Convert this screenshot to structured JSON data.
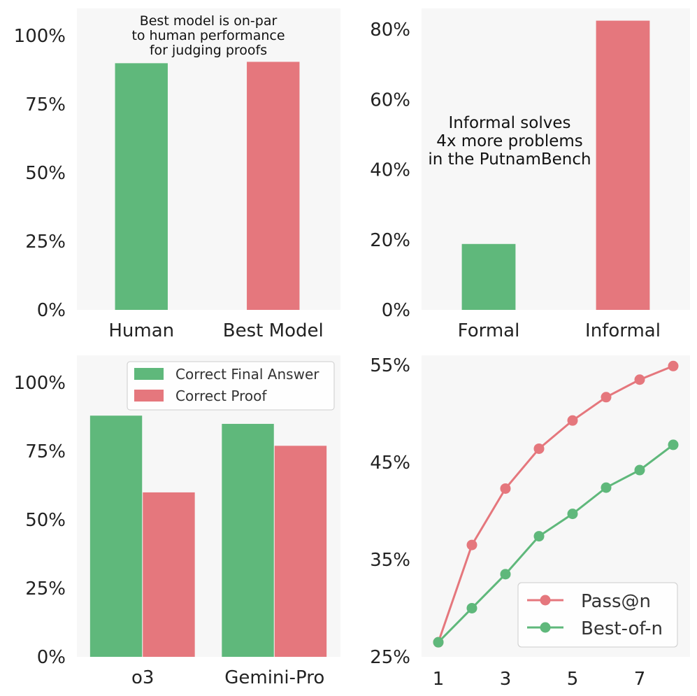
{
  "colors": {
    "green": "#5fb87b",
    "red": "#e5777d",
    "panel_bg": "#f7f7f7"
  },
  "chart_data": [
    {
      "type": "bar",
      "categories": [
        "Human",
        "Best Model"
      ],
      "series": [
        {
          "values": [
            90,
            90.5
          ]
        }
      ],
      "bar_colors": [
        "#5fb87b",
        "#e5777d"
      ],
      "ylim": [
        0,
        110
      ],
      "yticks": [
        0,
        25,
        50,
        75,
        100
      ],
      "ytick_labels": [
        "0%",
        "25%",
        "50%",
        "75%",
        "100%"
      ],
      "annotation": [
        "Best model is on-par",
        "to human performance",
        "for judging proofs"
      ],
      "grid": false
    },
    {
      "type": "bar",
      "categories": [
        "Formal",
        "Informal"
      ],
      "series": [
        {
          "values": [
            18.8,
            82.5
          ]
        }
      ],
      "bar_colors": [
        "#5fb87b",
        "#e5777d"
      ],
      "ylim": [
        0,
        86
      ],
      "yticks": [
        0,
        20,
        40,
        60,
        80
      ],
      "ytick_labels": [
        "0%",
        "20%",
        "40%",
        "60%",
        "80%"
      ],
      "annotation": [
        "Informal solves",
        "4x more problems",
        "in the PutnamBench"
      ],
      "grid": false
    },
    {
      "type": "bar",
      "categories": [
        "o3",
        "Gemini-Pro"
      ],
      "series": [
        {
          "name": "Correct Final Answer",
          "color": "#5fb87b",
          "values": [
            88,
            85
          ]
        },
        {
          "name": "Correct Proof",
          "color": "#e5777d",
          "values": [
            60,
            77
          ]
        }
      ],
      "ylim": [
        0,
        110
      ],
      "yticks": [
        0,
        25,
        50,
        75,
        100
      ],
      "ytick_labels": [
        "0%",
        "25%",
        "50%",
        "75%",
        "100%"
      ],
      "legend": "top-right",
      "grid": false
    },
    {
      "type": "line",
      "x": [
        1,
        2,
        3,
        4,
        5,
        6,
        7,
        8
      ],
      "series": [
        {
          "name": "Pass@n",
          "color": "#e5777d",
          "values": [
            26.5,
            36.5,
            42.3,
            46.4,
            49.3,
            51.7,
            53.5,
            54.9
          ]
        },
        {
          "name": "Best-of-n",
          "color": "#5fb87b",
          "values": [
            26.5,
            30.0,
            33.5,
            37.4,
            39.7,
            42.4,
            44.2,
            46.8
          ]
        }
      ],
      "xlim": [
        0.5,
        8.5
      ],
      "ylim": [
        25,
        56
      ],
      "xticks": [
        1,
        3,
        5,
        7
      ],
      "xtick_labels": [
        "1",
        "3",
        "5",
        "7"
      ],
      "yticks": [
        25,
        35,
        45,
        55
      ],
      "ytick_labels": [
        "25%",
        "35%",
        "45%",
        "55%"
      ],
      "legend": "bottom-right",
      "grid": false
    }
  ]
}
